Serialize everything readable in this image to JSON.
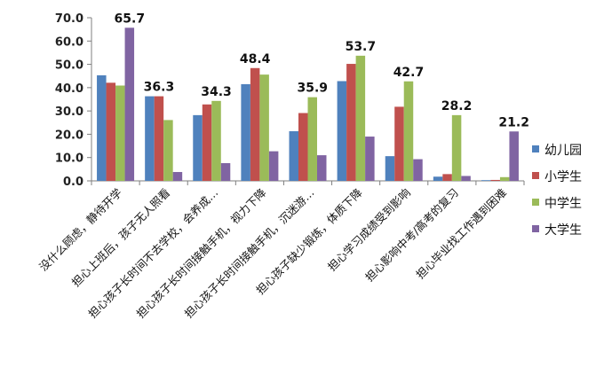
{
  "chart_data": {
    "type": "bar",
    "categories": [
      "没什么顾虑，静待开学",
      "担心上班后，孩子无人照看",
      "担心孩子长时间不去学校，会养成…",
      "担心孩子长时间接触手机，视力下降",
      "担心孩子长时间接触手机，沉迷游…",
      "担心孩子缺少锻炼，体质下降",
      "担心学习成绩受到影响",
      "担心影响中考/高考的复习",
      "担心毕业找工作遇到困难"
    ],
    "series": [
      {
        "name": "幼儿园",
        "color": "#4f81bd",
        "values": [
          45.3,
          36.3,
          28.2,
          41.5,
          21.3,
          42.8,
          10.6,
          1.8,
          0.3
        ]
      },
      {
        "name": "小学生",
        "color": "#c0504d",
        "values": [
          42.1,
          36.3,
          32.8,
          48.4,
          29.1,
          50.2,
          31.8,
          2.9,
          0.4
        ]
      },
      {
        "name": "中学生",
        "color": "#9bbb59",
        "values": [
          40.9,
          26.1,
          34.3,
          45.6,
          35.9,
          53.7,
          42.7,
          28.2,
          1.6
        ]
      },
      {
        "name": "大学生",
        "color": "#8064a2",
        "values": [
          65.7,
          3.8,
          7.6,
          12.7,
          11.0,
          19.0,
          9.3,
          2.1,
          21.2
        ]
      }
    ],
    "data_labels": [
      {
        "category_index": 0,
        "series_index": 3,
        "text": "65.7"
      },
      {
        "category_index": 1,
        "series_index": 1,
        "text": "36.3"
      },
      {
        "category_index": 2,
        "series_index": 2,
        "text": "34.3"
      },
      {
        "category_index": 3,
        "series_index": 1,
        "text": "48.4"
      },
      {
        "category_index": 4,
        "series_index": 2,
        "text": "35.9"
      },
      {
        "category_index": 5,
        "series_index": 2,
        "text": "53.7"
      },
      {
        "category_index": 6,
        "series_index": 2,
        "text": "42.7"
      },
      {
        "category_index": 7,
        "series_index": 2,
        "text": "28.2"
      },
      {
        "category_index": 8,
        "series_index": 3,
        "text": "21.2"
      }
    ],
    "y_ticks": [
      "0.0",
      "10.0",
      "20.0",
      "30.0",
      "40.0",
      "50.0",
      "60.0",
      "70.0"
    ],
    "ylim": [
      0,
      70
    ],
    "grid": false,
    "legend_position": "right"
  }
}
